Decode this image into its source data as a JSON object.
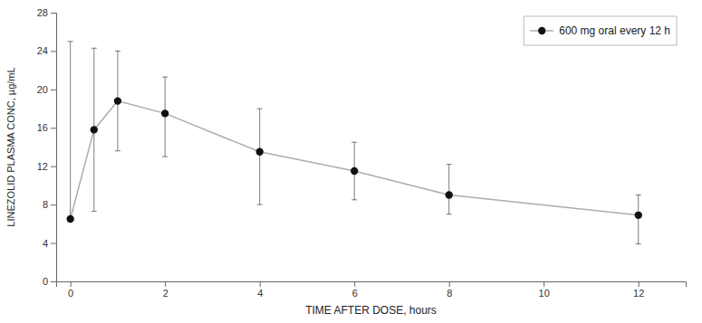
{
  "chart_data": {
    "type": "line",
    "xlabel": "TIME AFTER DOSE, hours",
    "ylabel": "LINEZOLID PLASMA CONC, µg/mL",
    "x": [
      0,
      0.5,
      1,
      2,
      4,
      6,
      8,
      12
    ],
    "series": [
      {
        "name": "600 mg oral every 12 h",
        "color": "#111111",
        "marker": "circle",
        "values": [
          6.5,
          15.8,
          18.8,
          17.5,
          13.5,
          11.5,
          9.0,
          6.9
        ],
        "error_lower": [
          0.0,
          8.5,
          5.2,
          4.5,
          5.5,
          3.0,
          2.0,
          3.0
        ],
        "error_upper": [
          18.5,
          8.5,
          5.2,
          3.8,
          4.5,
          3.0,
          3.2,
          2.1
        ]
      }
    ],
    "xlim": [
      -0.3,
      13
    ],
    "ylim": [
      0,
      28
    ],
    "xticks": [
      0,
      2,
      4,
      6,
      8,
      10,
      12
    ],
    "yticks": [
      0,
      4,
      8,
      12,
      16,
      20,
      24,
      28
    ],
    "legend": "upper right",
    "grid": false
  }
}
